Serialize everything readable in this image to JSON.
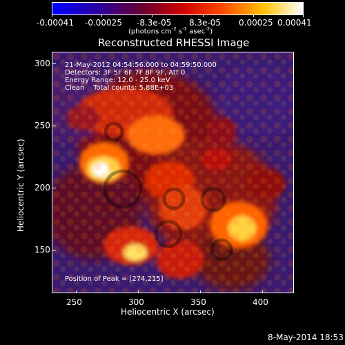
{
  "colorbar": {
    "ticks": [
      "-0.00041",
      "-0.00025",
      "-8.3e-05",
      "8.3e-05",
      "0.00025",
      "0.00041"
    ],
    "unit_base": "(photons cm",
    "unit_exp1": "-2",
    "unit_mid": " s",
    "unit_exp2": "-1",
    "unit_tail": " asec",
    "unit_exp3": "-2",
    "unit_close": ")",
    "colors": {
      "low": "#0000ff",
      "mid": "#ff0000",
      "high": "#ffff00",
      "top": "#ffffff"
    }
  },
  "title": "Reconstructed RHESSI Image",
  "annotations": {
    "line1": "21-May-2012 04:54:56.000 to 04:59:50.000",
    "line2": "Detectors: 3F 5F 6F 7F 8F 9F, Att 0",
    "line3": "Energy Range: 12.0 - 25.0 keV",
    "line4": "Clean    Total counts: 5.88E+03",
    "peak": "Position of Peak = [274,215]"
  },
  "axes": {
    "xlabel": "Heliocentric X (arcsec)",
    "ylabel": "Heliocentric Y (arcsec)",
    "xticks": [
      "250",
      "300",
      "350",
      "400"
    ],
    "yticks": [
      "300",
      "250",
      "200",
      "150"
    ],
    "xlim": [
      230,
      425
    ],
    "ylim": [
      115,
      310
    ]
  },
  "footer": {
    "date": "8-May-2014 18:53"
  },
  "image_data": {
    "peak_xy": [
      274,
      215
    ]
  }
}
